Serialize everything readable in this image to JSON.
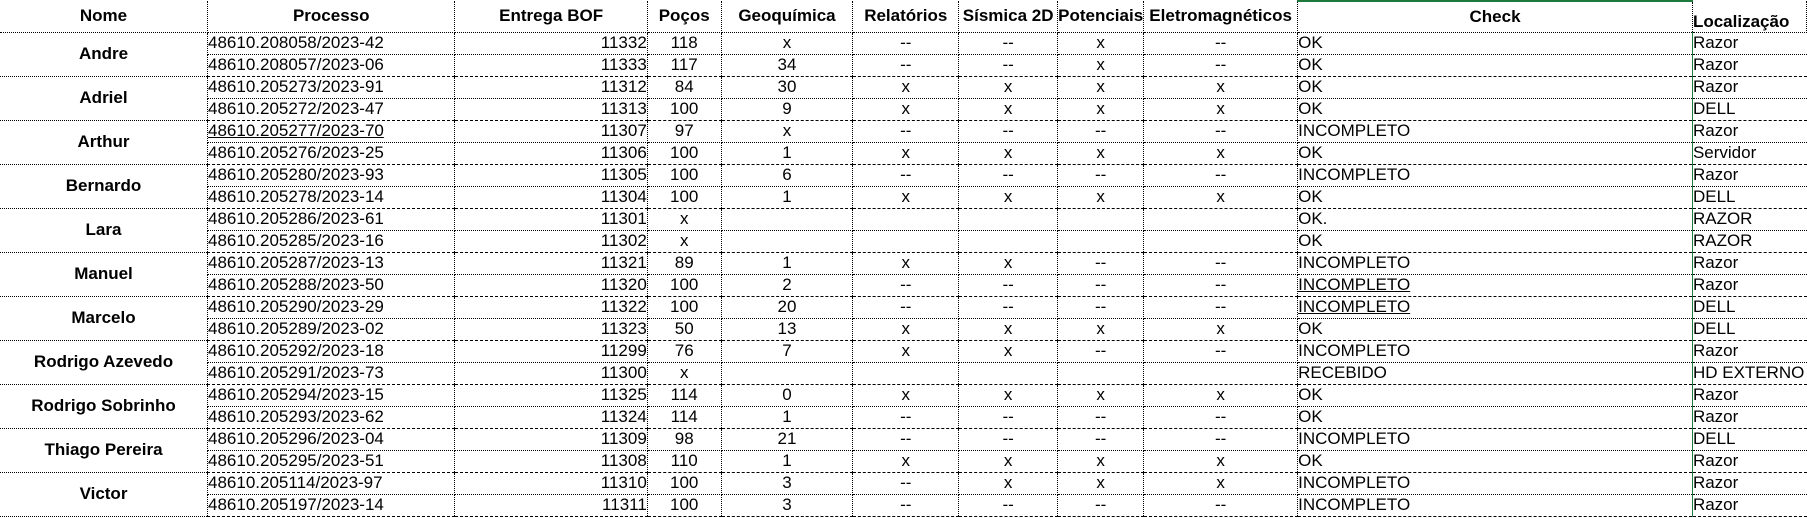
{
  "headers": {
    "nome": "Nome",
    "processo": "Processo",
    "entrega": "Entrega BOF",
    "pocos": "Poços",
    "geoquimica": "Geoquímica",
    "relatorios": "Relatórios",
    "sismica": "Sísmica 2D",
    "potenciais": "Potenciais",
    "eletro": "Eletromagnéticos",
    "check": "Check",
    "localizacao": "Localização"
  },
  "groups": [
    {
      "nome": "Andre",
      "rows": [
        {
          "processo": "48610.208058/2023-42",
          "entrega": "11332",
          "pocos": "118",
          "geo": "x",
          "rel": "--",
          "sis": "--",
          "pot": "x",
          "ele": "--",
          "check": "OK",
          "loc": "Razor"
        },
        {
          "processo": "48610.208057/2023-06",
          "entrega": "11333",
          "pocos": "117",
          "geo": "34",
          "rel": "--",
          "sis": "--",
          "pot": "x",
          "ele": "--",
          "check": "OK",
          "loc": "Razor"
        }
      ]
    },
    {
      "nome": "Adriel",
      "rows": [
        {
          "processo": "48610.205273/2023-91",
          "entrega": "11312",
          "pocos": "84",
          "geo": "30",
          "rel": "x",
          "sis": "x",
          "pot": "x",
          "ele": "x",
          "check": "OK",
          "loc": "Razor"
        },
        {
          "processo": "48610.205272/2023-47",
          "entrega": "11313",
          "pocos": "100",
          "geo": "9",
          "rel": "x",
          "sis": "x",
          "pot": "x",
          "ele": "x",
          "check": "OK",
          "loc": "DELL"
        }
      ]
    },
    {
      "nome": "Arthur",
      "rows": [
        {
          "processo": "48610.205277/2023-70",
          "entrega": "11307",
          "pocos": "97",
          "geo": "x",
          "rel": "--",
          "sis": "--",
          "pot": "--",
          "ele": "--",
          "check": "INCOMPLETO",
          "loc": "Razor"
        },
        {
          "processo": "48610.205276/2023-25",
          "entrega": "11306",
          "pocos": "100",
          "geo": "1",
          "rel": "x",
          "sis": "x",
          "pot": "x",
          "ele": "x",
          "check": "OK",
          "loc": "Servidor"
        }
      ]
    },
    {
      "nome": "Bernardo",
      "rows": [
        {
          "processo": "48610.205280/2023-93",
          "entrega": "11305",
          "pocos": "100",
          "geo": "6",
          "rel": "--",
          "sis": "--",
          "pot": "--",
          "ele": "--",
          "check": "INCOMPLETO",
          "loc": "Razor"
        },
        {
          "processo": "48610.205278/2023-14",
          "entrega": "11304",
          "pocos": "100",
          "geo": "1",
          "rel": "x",
          "sis": "x",
          "pot": "x",
          "ele": "x",
          "check": "OK",
          "loc": "DELL"
        }
      ]
    },
    {
      "nome": "Lara",
      "rows": [
        {
          "processo": "48610.205286/2023-61",
          "entrega": "11301",
          "pocos": "x",
          "geo": "",
          "rel": "",
          "sis": "",
          "pot": "",
          "ele": "",
          "check": "OK.",
          "loc": "RAZOR"
        },
        {
          "processo": "48610.205285/2023-16",
          "entrega": "11302",
          "pocos": "x",
          "geo": "",
          "rel": "",
          "sis": "",
          "pot": "",
          "ele": "",
          "check": "OK",
          "loc": "RAZOR"
        }
      ]
    },
    {
      "nome": "Manuel",
      "rows": [
        {
          "processo": "48610.205287/2023-13",
          "entrega": "11321",
          "pocos": "89",
          "geo": "1",
          "rel": "x",
          "sis": "x",
          "pot": "--",
          "ele": "--",
          "check": "INCOMPLETO",
          "loc": "Razor"
        },
        {
          "processo": "48610.205288/2023-50",
          "entrega": "11320",
          "pocos": "100",
          "geo": "2",
          "rel": "--",
          "sis": "--",
          "pot": "--",
          "ele": "--",
          "check": "INCOMPLETO",
          "loc": "Razor"
        }
      ]
    },
    {
      "nome": "Marcelo",
      "rows": [
        {
          "processo": "48610.205290/2023-29",
          "entrega": "11322",
          "pocos": "100",
          "geo": "20",
          "rel": "--",
          "sis": "--",
          "pot": "--",
          "ele": "--",
          "check": "INCOMPLETO",
          "loc": "DELL"
        },
        {
          "processo": "48610.205289/2023-02",
          "entrega": "11323",
          "pocos": "50",
          "geo": "13",
          "rel": "x",
          "sis": "x",
          "pot": "x",
          "ele": "x",
          "check": "OK",
          "loc": "DELL"
        }
      ]
    },
    {
      "nome": "Rodrigo Azevedo",
      "rows": [
        {
          "processo": "48610.205292/2023-18",
          "entrega": "11299",
          "pocos": "76",
          "geo": "7",
          "rel": "x",
          "sis": "x",
          "pot": "--",
          "ele": "--",
          "check": "INCOMPLETO",
          "loc": "Razor"
        },
        {
          "processo": "48610.205291/2023-73",
          "entrega": "11300",
          "pocos": "x",
          "geo": "",
          "rel": "",
          "sis": "",
          "pot": "",
          "ele": "",
          "check": "RECEBIDO",
          "loc": "HD EXTERNO"
        }
      ]
    },
    {
      "nome": "Rodrigo Sobrinho",
      "rows": [
        {
          "processo": "48610.205294/2023-15",
          "entrega": "11325",
          "pocos": "114",
          "geo": "0",
          "rel": "x",
          "sis": "x",
          "pot": "x",
          "ele": "x",
          "check": "OK",
          "loc": "Razor"
        },
        {
          "processo": "48610.205293/2023-62",
          "entrega": "11324",
          "pocos": "114",
          "geo": "1",
          "rel": "--",
          "sis": "--",
          "pot": "--",
          "ele": "--",
          "check": "OK",
          "loc": "Razor"
        }
      ]
    },
    {
      "nome": "Thiago Pereira",
      "rows": [
        {
          "processo": "48610.205296/2023-04",
          "entrega": "11309",
          "pocos": "98",
          "geo": "21",
          "rel": "--",
          "sis": "--",
          "pot": "--",
          "ele": "--",
          "check": "INCOMPLETO",
          "loc": "DELL"
        },
        {
          "processo": "48610.205295/2023-51",
          "entrega": "11308",
          "pocos": "110",
          "geo": "1",
          "rel": "x",
          "sis": "x",
          "pot": "x",
          "ele": "x",
          "check": "OK",
          "loc": "Razor"
        }
      ]
    },
    {
      "nome": "Victor",
      "rows": [
        {
          "processo": "48610.205114/2023-97",
          "entrega": "11310",
          "pocos": "100",
          "geo": "3",
          "rel": "--",
          "sis": "x",
          "pot": "x",
          "ele": "x",
          "check": "INCOMPLETO",
          "loc": "Razor"
        },
        {
          "processo": "48610.205197/2023-14",
          "entrega": "11311",
          "pocos": "100",
          "geo": "3",
          "rel": "--",
          "sis": "--",
          "pot": "--",
          "ele": "--",
          "check": "INCOMPLETO",
          "loc": "Razor"
        }
      ]
    }
  ],
  "styles": {
    "underlined": [
      "48610.205277/2023-70",
      "INCOMPLETO-manuel-2",
      "INCOMPLETO-marcelo-1"
    ],
    "accent": "#1e7a3c",
    "value_green": "#2e5a1c"
  }
}
